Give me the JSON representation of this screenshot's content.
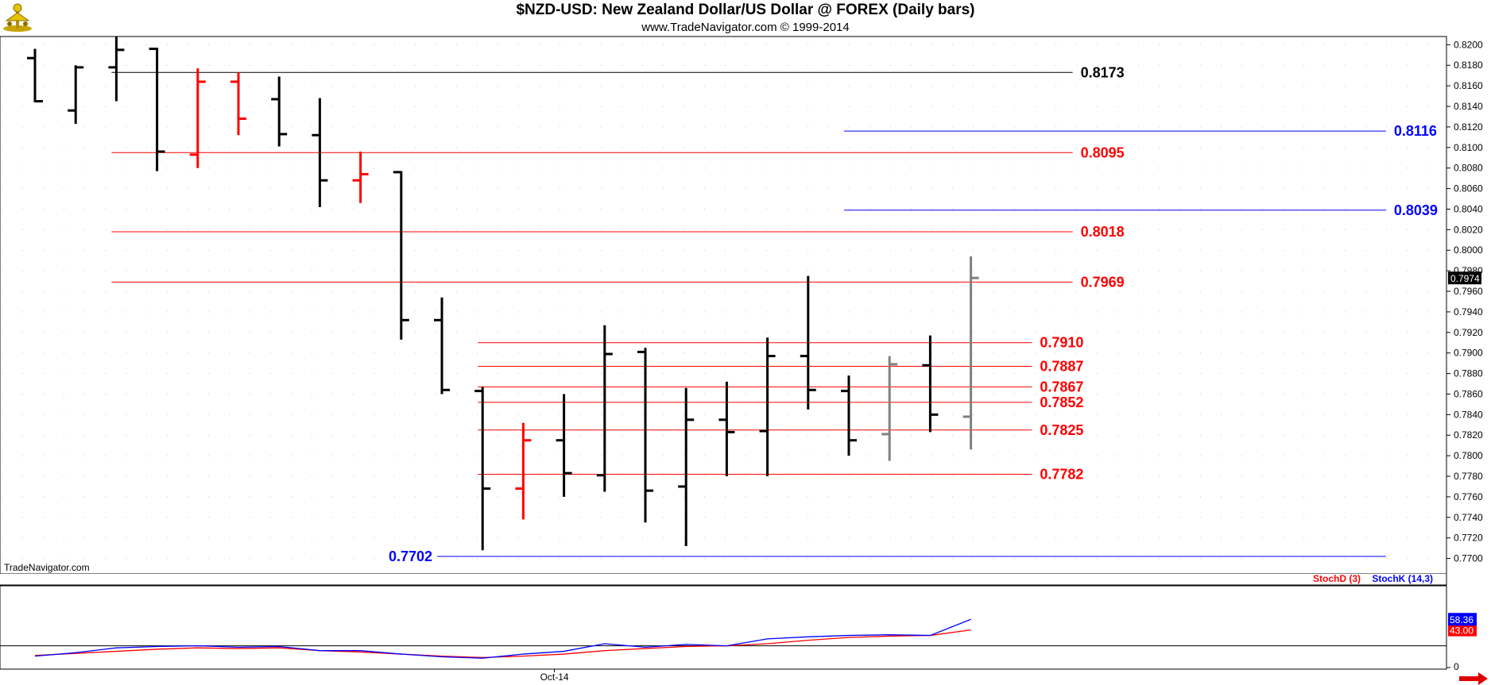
{
  "header": {
    "title": "$NZD-USD:  New Zealand Dollar/US Dollar @ FOREX  (Daily bars)",
    "subtitle": "www.TradeNavigator.com © 1999-2014"
  },
  "watermark": "TradeNavigator.com",
  "chart_data": [
    {
      "type": "ohlc",
      "title": "$NZD-USD:  New Zealand Dollar/US Dollar @ FOREX  (Daily bars)",
      "ylim": [
        0.7685,
        0.8208
      ],
      "y_ticks": [
        "0.8200",
        "0.8180",
        "0.8160",
        "0.8140",
        "0.8120",
        "0.8100",
        "0.8080",
        "0.8060",
        "0.8040",
        "0.8020",
        "0.8000",
        "0.7980",
        "0.7960",
        "0.7940",
        "0.7920",
        "0.7900",
        "0.7880",
        "0.7860",
        "0.7840",
        "0.7820",
        "0.7800",
        "0.7780",
        "0.7760",
        "0.7740",
        "0.7720",
        "0.7700"
      ],
      "x_labels": [
        {
          "label": "Oct-14",
          "bar_index": 13
        }
      ],
      "last_price_label": "0.7974",
      "grid": true,
      "bars": [
        {
          "o": 0.8187,
          "h": 0.8196,
          "l": 0.8144,
          "c": 0.8145,
          "color": "#000000"
        },
        {
          "o": 0.8136,
          "h": 0.818,
          "l": 0.8123,
          "c": 0.8178,
          "color": "#000000"
        },
        {
          "o": 0.8178,
          "h": 0.8208,
          "l": 0.8145,
          "c": 0.8195,
          "color": "#000000"
        },
        {
          "o": 0.8196,
          "h": 0.8197,
          "l": 0.8077,
          "c": 0.8096,
          "color": "#000000"
        },
        {
          "o": 0.8093,
          "h": 0.8177,
          "l": 0.808,
          "c": 0.8164,
          "color": "#ff0000"
        },
        {
          "o": 0.8164,
          "h": 0.8173,
          "l": 0.8112,
          "c": 0.8128,
          "color": "#ff0000"
        },
        {
          "o": 0.8147,
          "h": 0.8169,
          "l": 0.8101,
          "c": 0.8113,
          "color": "#000000"
        },
        {
          "o": 0.8112,
          "h": 0.8148,
          "l": 0.8042,
          "c": 0.8068,
          "color": "#000000"
        },
        {
          "o": 0.8068,
          "h": 0.8096,
          "l": 0.8046,
          "c": 0.8074,
          "color": "#ff0000"
        },
        {
          "o": 0.8076,
          "h": 0.8077,
          "l": 0.7913,
          "c": 0.7932,
          "color": "#000000"
        },
        {
          "o": 0.7932,
          "h": 0.7954,
          "l": 0.786,
          "c": 0.7864,
          "color": "#000000"
        },
        {
          "o": 0.7863,
          "h": 0.7867,
          "l": 0.7708,
          "c": 0.7768,
          "color": "#000000"
        },
        {
          "o": 0.7768,
          "h": 0.7832,
          "l": 0.7738,
          "c": 0.7815,
          "color": "#ff0000"
        },
        {
          "o": 0.7815,
          "h": 0.786,
          "l": 0.776,
          "c": 0.7783,
          "color": "#000000"
        },
        {
          "o": 0.7781,
          "h": 0.7927,
          "l": 0.7765,
          "c": 0.7899,
          "color": "#000000"
        },
        {
          "o": 0.7901,
          "h": 0.7905,
          "l": 0.7735,
          "c": 0.7766,
          "color": "#000000"
        },
        {
          "o": 0.777,
          "h": 0.7866,
          "l": 0.7712,
          "c": 0.7835,
          "color": "#000000"
        },
        {
          "o": 0.7835,
          "h": 0.7872,
          "l": 0.778,
          "c": 0.7823,
          "color": "#000000"
        },
        {
          "o": 0.7824,
          "h": 0.7915,
          "l": 0.778,
          "c": 0.7897,
          "color": "#000000"
        },
        {
          "o": 0.7897,
          "h": 0.7975,
          "l": 0.7845,
          "c": 0.7864,
          "color": "#000000"
        },
        {
          "o": 0.7863,
          "h": 0.7878,
          "l": 0.78,
          "c": 0.7815,
          "color": "#000000"
        },
        {
          "o": 0.7821,
          "h": 0.7897,
          "l": 0.7795,
          "c": 0.7889,
          "color": "#808080"
        },
        {
          "o": 0.7888,
          "h": 0.7917,
          "l": 0.7823,
          "c": 0.784,
          "color": "#000000"
        },
        {
          "o": 0.7838,
          "h": 0.7994,
          "l": 0.7806,
          "c": 0.7973,
          "color": "#808080"
        }
      ],
      "levels": [
        {
          "value": 0.8173,
          "label": "0.8173",
          "color": "#000000",
          "from_bar": 2,
          "to_bar": 25.5
        },
        {
          "value": 0.8095,
          "label": "0.8095",
          "color": "#ff0000",
          "from_bar": 2,
          "to_bar": 25.5
        },
        {
          "value": 0.8018,
          "label": "0.8018",
          "color": "#ff0000",
          "from_bar": 2,
          "to_bar": 25.5
        },
        {
          "value": 0.7969,
          "label": "0.7969",
          "color": "#ff0000",
          "from_bar": 2,
          "to_bar": 25.5
        },
        {
          "value": 0.791,
          "label": "0.7910",
          "color": "#ff0000",
          "from_bar": 11,
          "to_bar": 24.5
        },
        {
          "value": 0.7887,
          "label": "0.7887",
          "color": "#ff0000",
          "from_bar": 11,
          "to_bar": 24.5
        },
        {
          "value": 0.7867,
          "label": "0.7867",
          "color": "#ff0000",
          "from_bar": 11,
          "to_bar": 24.5
        },
        {
          "value": 0.7852,
          "label": "0.7852",
          "color": "#ff0000",
          "from_bar": 11,
          "to_bar": 24.5
        },
        {
          "value": 0.7825,
          "label": "0.7825",
          "color": "#ff0000",
          "from_bar": 11,
          "to_bar": 24.5
        },
        {
          "value": 0.7782,
          "label": "0.7782",
          "color": "#ff0000",
          "from_bar": 11,
          "to_bar": 24.5
        },
        {
          "value": 0.8116,
          "label": "0.8116",
          "color": "#0000ff",
          "from_bar": 20,
          "to_bar": 33.2
        },
        {
          "value": 0.8039,
          "label": "0.8039",
          "color": "#0000ff",
          "from_bar": 20,
          "to_bar": 33.2
        },
        {
          "value": 0.7702,
          "label": "0.7702",
          "color": "#0000ff",
          "from_bar": 10,
          "to_bar": 33.2,
          "label_side": "left"
        }
      ]
    },
    {
      "type": "line",
      "legend_position": "top-right",
      "ylim": [
        0,
        100
      ],
      "y_ticks": [
        "0"
      ],
      "last_labels": [
        "58.36",
        "43.00"
      ],
      "series": [
        {
          "name": "StochD (3)",
          "color": "#ff0000",
          "values": [
            6,
            9,
            12,
            15,
            17,
            16,
            17,
            13,
            11,
            8,
            5,
            3,
            5,
            8,
            13,
            16,
            19,
            20,
            23,
            28,
            32,
            34,
            35,
            43
          ]
        },
        {
          "name": "StochK (14,3)",
          "color": "#0000ff",
          "values": [
            5,
            10,
            17,
            19,
            20,
            18,
            19,
            13,
            13,
            8,
            4,
            2,
            8,
            12,
            23,
            18,
            22,
            20,
            30,
            33,
            35,
            36,
            35,
            58.36
          ]
        }
      ]
    }
  ]
}
